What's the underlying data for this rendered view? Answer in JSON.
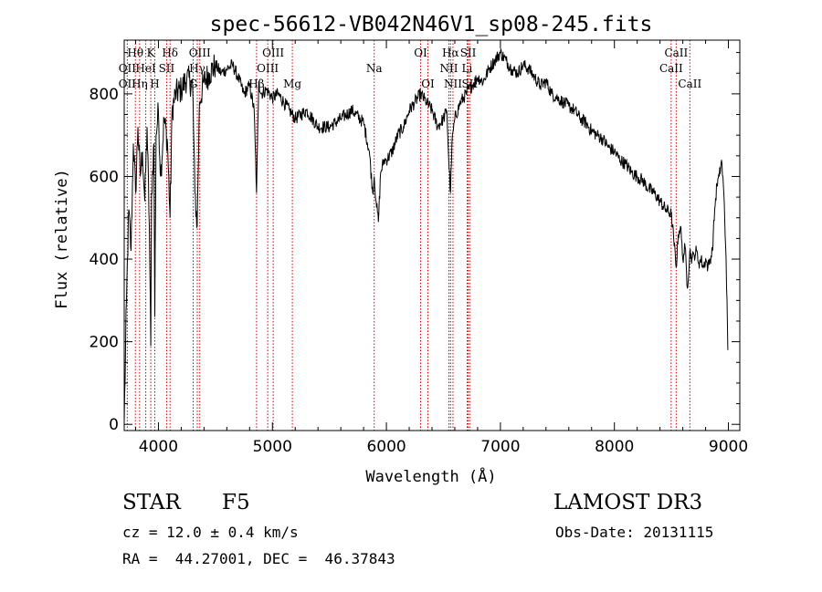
{
  "chart_data": {
    "type": "line",
    "title": "spec-56612-VB042N46V1_sp08-245.fits",
    "xlabel": "Wavelength (Å)",
    "ylabel": "Flux (relative)",
    "xlim": [
      3700,
      9100
    ],
    "ylim": [
      -15,
      930
    ],
    "x_ticks": [
      4000,
      5000,
      6000,
      7000,
      8000,
      9000
    ],
    "y_ticks": [
      0,
      200,
      400,
      600,
      800
    ],
    "series": [
      {
        "name": "spectrum",
        "x": [
          3700,
          3720,
          3740,
          3760,
          3780,
          3800,
          3820,
          3840,
          3860,
          3880,
          3900,
          3920,
          3933,
          3940,
          3960,
          3968,
          3980,
          4000,
          4020,
          4050,
          4080,
          4102,
          4120,
          4150,
          4200,
          4250,
          4300,
          4320,
          4340,
          4360,
          4400,
          4450,
          4500,
          4550,
          4600,
          4650,
          4700,
          4750,
          4800,
          4840,
          4861,
          4880,
          4900,
          4950,
          5000,
          5050,
          5100,
          5150,
          5200,
          5300,
          5400,
          5500,
          5600,
          5700,
          5800,
          5850,
          5880,
          5893,
          5910,
          5930,
          5950,
          5980,
          6000,
          6050,
          6100,
          6150,
          6200,
          6250,
          6300,
          6350,
          6400,
          6450,
          6500,
          6530,
          6550,
          6563,
          6575,
          6600,
          6650,
          6700,
          6750,
          6800,
          6850,
          6900,
          6950,
          7000,
          7050,
          7100,
          7150,
          7200,
          7250,
          7300,
          7350,
          7400,
          7450,
          7500,
          7550,
          7600,
          7650,
          7700,
          7750,
          7800,
          7850,
          7900,
          7950,
          8000,
          8050,
          8100,
          8150,
          8200,
          8250,
          8300,
          8350,
          8400,
          8450,
          8498,
          8520,
          8542,
          8560,
          8580,
          8600,
          8620,
          8640,
          8662,
          8680,
          8700,
          8720,
          8740,
          8760,
          8780,
          8800,
          8820,
          8840,
          8860,
          8880,
          8900,
          8920,
          8940,
          8960,
          8980,
          8995
        ],
        "y": [
          5,
          300,
          520,
          420,
          680,
          560,
          720,
          600,
          660,
          540,
          720,
          480,
          190,
          560,
          680,
          260,
          700,
          760,
          600,
          740,
          680,
          500,
          760,
          800,
          810,
          840,
          820,
          560,
          480,
          780,
          830,
          850,
          870,
          850,
          860,
          870,
          840,
          800,
          820,
          760,
          560,
          830,
          800,
          810,
          790,
          800,
          780,
          760,
          740,
          760,
          720,
          720,
          740,
          760,
          730,
          660,
          560,
          600,
          540,
          490,
          610,
          640,
          640,
          660,
          700,
          720,
          760,
          780,
          800,
          780,
          760,
          720,
          740,
          760,
          620,
          560,
          680,
          740,
          780,
          800,
          820,
          840,
          830,
          860,
          880,
          900,
          880,
          860,
          850,
          870,
          860,
          840,
          820,
          830,
          800,
          790,
          780,
          770,
          760,
          740,
          730,
          710,
          700,
          690,
          670,
          660,
          640,
          630,
          610,
          600,
          590,
          570,
          560,
          540,
          520,
          510,
          450,
          380,
          460,
          480,
          400,
          430,
          330,
          420,
          400,
          410,
          420,
          390,
          400,
          380,
          400,
          380,
          400,
          420,
          520,
          580,
          600,
          640,
          560,
          400,
          180
        ]
      }
    ],
    "line_labels": [
      {
        "label": "Hθ",
        "x": 3798,
        "row": 1
      },
      {
        "label": "OII",
        "x": 3727,
        "row": 2
      },
      {
        "label": "OII",
        "x": 3727,
        "row": 3
      },
      {
        "label": "Hη",
        "x": 3835,
        "row": 3
      },
      {
        "label": "HeI",
        "x": 3889,
        "row": 2
      },
      {
        "label": "K",
        "x": 3933,
        "row": 1
      },
      {
        "label": "H",
        "x": 3968,
        "row": 3
      },
      {
        "label": "Hδ",
        "x": 4102,
        "row": 1
      },
      {
        "label": "SII",
        "x": 4072,
        "row": 2
      },
      {
        "label": "OIII",
        "x": 4363,
        "row": 1
      },
      {
        "label": "Hγ",
        "x": 4341,
        "row": 2
      },
      {
        "label": "G",
        "x": 4305,
        "row": 3
      },
      {
        "label": "OIII",
        "x": 5007,
        "row": 1
      },
      {
        "label": "OIII",
        "x": 4959,
        "row": 2
      },
      {
        "label": "Hβ",
        "x": 4861,
        "row": 3
      },
      {
        "label": "Mg",
        "x": 5175,
        "row": 3
      },
      {
        "label": "Na",
        "x": 5893,
        "row": 2
      },
      {
        "label": "OI",
        "x": 6300,
        "row": 1
      },
      {
        "label": "OI",
        "x": 6364,
        "row": 3
      },
      {
        "label": "Hα",
        "x": 6563,
        "row": 1
      },
      {
        "label": "SII",
        "x": 6717,
        "row": 1
      },
      {
        "label": "NII",
        "x": 6548,
        "row": 2
      },
      {
        "label": "Li",
        "x": 6708,
        "row": 2
      },
      {
        "label": "NII",
        "x": 6584,
        "row": 3
      },
      {
        "label": "SII",
        "x": 6731,
        "row": 3
      },
      {
        "label": "CaII",
        "x": 8542,
        "row": 1
      },
      {
        "label": "CaII",
        "x": 8498,
        "row": 2
      },
      {
        "label": "CaII",
        "x": 8662,
        "row": 3
      }
    ],
    "line_marker_color": "#cc0000"
  },
  "info": {
    "object_type": "STAR",
    "subclass": "F5",
    "survey": "LAMOST DR3",
    "redshift_line": "cz = 12.0 ± 0.4 km/s",
    "obs_date": "Obs-Date: 20131115",
    "coords": "RA =  44.27001, DEC =  46.37843"
  }
}
